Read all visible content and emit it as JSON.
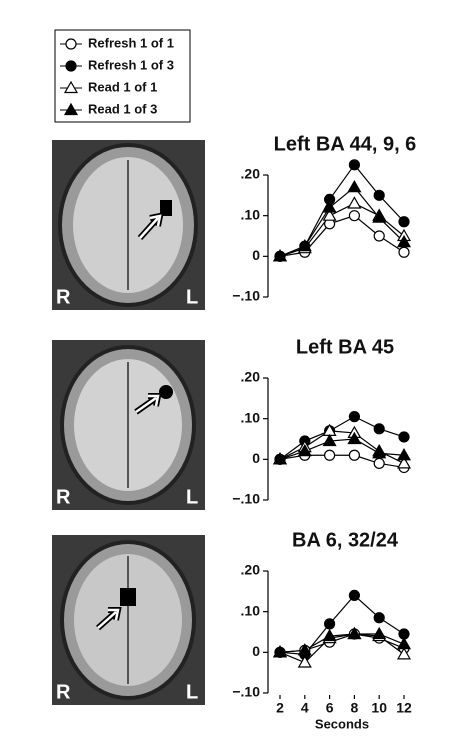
{
  "chart_data": [
    {
      "type": "line",
      "title": "Left BA 44, 9, 6",
      "x": [
        2,
        4,
        6,
        8,
        10,
        12
      ],
      "xlim": [
        1,
        13
      ],
      "ylim": [
        -0.1,
        0.2
      ],
      "yticks": [
        {
          "value": 0.2,
          "label": ".20"
        },
        {
          "value": 0.1,
          "label": ".10"
        },
        0,
        {
          "value": -0.1,
          "label": "−.10"
        }
      ],
      "series": [
        {
          "name": "Refresh 1 of 1",
          "color": "#000000",
          "marker": "circle",
          "filled": false,
          "values": [
            0,
            0.01,
            0.08,
            0.1,
            0.05,
            0.01
          ]
        },
        {
          "name": "Refresh 1 of 3",
          "color": "#000000",
          "marker": "circle",
          "filled": true,
          "values": [
            0,
            0.025,
            0.14,
            0.225,
            0.15,
            0.085
          ]
        },
        {
          "name": "Read 1 of 1",
          "color": "#000000",
          "marker": "triangle",
          "filled": false,
          "values": [
            0,
            0.02,
            0.1,
            0.13,
            0.1,
            0.05
          ]
        },
        {
          "name": "Read 1 of 3",
          "color": "#000000",
          "marker": "triangle",
          "filled": true,
          "values": [
            0,
            0.025,
            0.12,
            0.17,
            0.095,
            0.035
          ]
        }
      ]
    },
    {
      "type": "line",
      "title": "Left BA 45",
      "x": [
        2,
        4,
        6,
        8,
        10,
        12
      ],
      "xlim": [
        1,
        13
      ],
      "ylim": [
        -0.1,
        0.2
      ],
      "yticks": [
        {
          "value": 0.2,
          "label": ".20"
        },
        {
          "value": 0.1,
          "label": ".10"
        },
        0,
        {
          "value": -0.1,
          "label": "−.10"
        }
      ],
      "series": [
        {
          "name": "Refresh 1 of 1",
          "color": "#000000",
          "marker": "circle",
          "filled": false,
          "values": [
            0,
            0.01,
            0.01,
            0.01,
            -0.01,
            -0.02
          ]
        },
        {
          "name": "Refresh 1 of 3",
          "color": "#000000",
          "marker": "circle",
          "filled": true,
          "values": [
            0,
            0.045,
            0.07,
            0.105,
            0.075,
            0.055
          ]
        },
        {
          "name": "Read 1 of 1",
          "color": "#000000",
          "marker": "triangle",
          "filled": false,
          "values": [
            0,
            0.03,
            0.07,
            0.065,
            0.02,
            -0.01
          ]
        },
        {
          "name": "Read 1 of 3",
          "color": "#000000",
          "marker": "triangle",
          "filled": true,
          "values": [
            0,
            0.02,
            0.045,
            0.05,
            0.015,
            0.01
          ]
        }
      ]
    },
    {
      "type": "line",
      "title": "BA 6, 32/24",
      "xlabel": "Seconds",
      "x": [
        2,
        4,
        6,
        8,
        10,
        12
      ],
      "xlim": [
        1,
        13
      ],
      "xticks": [
        2,
        4,
        6,
        8,
        10,
        12
      ],
      "ylim": [
        -0.1,
        0.2
      ],
      "yticks": [
        {
          "value": 0.2,
          "label": ".20"
        },
        {
          "value": 0.1,
          "label": ".10"
        },
        0,
        {
          "value": -0.1,
          "label": "−.10"
        }
      ],
      "series": [
        {
          "name": "Refresh 1 of 1",
          "color": "#000000",
          "marker": "circle",
          "filled": false,
          "values": [
            0,
            0.005,
            0.025,
            0.045,
            0.035,
            0.01
          ]
        },
        {
          "name": "Refresh 1 of 3",
          "color": "#000000",
          "marker": "circle",
          "filled": true,
          "values": [
            0,
            -0.005,
            0.07,
            0.14,
            0.085,
            0.045
          ]
        },
        {
          "name": "Read 1 of 1",
          "color": "#000000",
          "marker": "triangle",
          "filled": false,
          "values": [
            0,
            -0.025,
            0.035,
            0.045,
            0.04,
            -0.005
          ]
        },
        {
          "name": "Read 1 of 3",
          "color": "#000000",
          "marker": "triangle",
          "filled": true,
          "values": [
            0,
            0.005,
            0.04,
            0.045,
            0.045,
            0.02
          ]
        }
      ]
    }
  ],
  "brain_images": [
    {
      "left": "R",
      "right": "L"
    },
    {
      "left": "R",
      "right": "L"
    },
    {
      "left": "R",
      "right": "L"
    }
  ]
}
